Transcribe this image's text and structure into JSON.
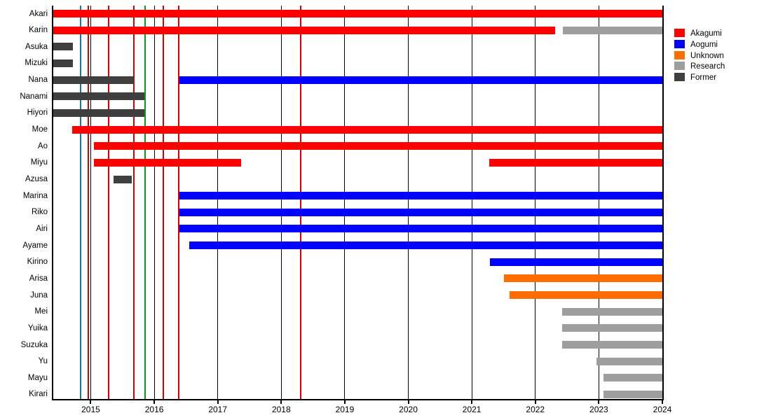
{
  "chart_data": {
    "type": "gantt",
    "title": "",
    "x_axis": {
      "min": 2014.41,
      "max": 2024.0,
      "tick_years": [
        2015,
        2016,
        2017,
        2018,
        2019,
        2020,
        2021,
        2022,
        2023,
        2024
      ]
    },
    "colors": {
      "akagumi": "#FF0000",
      "aogumi": "#0000FF",
      "unknown": "#FF6D00",
      "research": "#9E9E9E",
      "former": "#3F3F3F",
      "event_red": "#D40000",
      "event_teal": "#1279A3",
      "event_green": "#00A010",
      "axis": "#000000"
    },
    "rows": [
      {
        "label": "Akari",
        "segments": [
          {
            "start": 2014.41,
            "end": 2024.0,
            "color": "akagumi"
          }
        ]
      },
      {
        "label": "Karin",
        "segments": [
          {
            "start": 2014.41,
            "end": 2022.31,
            "color": "akagumi"
          },
          {
            "start": 2022.43,
            "end": 2024.0,
            "color": "research"
          }
        ]
      },
      {
        "label": "Asuka",
        "segments": [
          {
            "start": 2014.41,
            "end": 2014.72,
            "color": "former"
          }
        ]
      },
      {
        "label": "Mizuki",
        "segments": [
          {
            "start": 2014.41,
            "end": 2014.72,
            "color": "former"
          }
        ]
      },
      {
        "label": "Nana",
        "segments": [
          {
            "start": 2014.41,
            "end": 2015.68,
            "color": "former"
          },
          {
            "start": 2016.4,
            "end": 2024.0,
            "color": "aogumi"
          }
        ]
      },
      {
        "label": "Nanami",
        "segments": [
          {
            "start": 2014.41,
            "end": 2015.84,
            "color": "former"
          }
        ]
      },
      {
        "label": "Hiyori",
        "segments": [
          {
            "start": 2014.41,
            "end": 2015.84,
            "color": "former"
          }
        ]
      },
      {
        "label": "Moe",
        "segments": [
          {
            "start": 2014.71,
            "end": 2024.0,
            "color": "akagumi"
          }
        ]
      },
      {
        "label": "Ao",
        "segments": [
          {
            "start": 2015.05,
            "end": 2024.0,
            "color": "akagumi"
          }
        ]
      },
      {
        "label": "Miyu",
        "segments": [
          {
            "start": 2015.05,
            "end": 2017.37,
            "color": "akagumi"
          },
          {
            "start": 2021.27,
            "end": 2024.0,
            "color": "akagumi"
          }
        ]
      },
      {
        "label": "Azusa",
        "segments": [
          {
            "start": 2015.36,
            "end": 2015.65,
            "color": "former"
          }
        ]
      },
      {
        "label": "Marina",
        "segments": [
          {
            "start": 2016.4,
            "end": 2024.0,
            "color": "aogumi"
          }
        ]
      },
      {
        "label": "Riko",
        "segments": [
          {
            "start": 2016.4,
            "end": 2024.0,
            "color": "aogumi"
          }
        ]
      },
      {
        "label": "Airi",
        "segments": [
          {
            "start": 2016.4,
            "end": 2024.0,
            "color": "aogumi"
          }
        ]
      },
      {
        "label": "Ayame",
        "segments": [
          {
            "start": 2016.55,
            "end": 2024.0,
            "color": "aogumi"
          }
        ]
      },
      {
        "label": "Kirino",
        "segments": [
          {
            "start": 2021.28,
            "end": 2024.0,
            "color": "aogumi"
          }
        ]
      },
      {
        "label": "Arisa",
        "segments": [
          {
            "start": 2021.51,
            "end": 2024.0,
            "color": "unknown"
          }
        ]
      },
      {
        "label": "Juna",
        "segments": [
          {
            "start": 2021.59,
            "end": 2024.0,
            "color": "unknown"
          }
        ]
      },
      {
        "label": "Mei",
        "segments": [
          {
            "start": 2022.42,
            "end": 2024.0,
            "color": "research"
          }
        ]
      },
      {
        "label": "Yuika",
        "segments": [
          {
            "start": 2022.42,
            "end": 2024.0,
            "color": "research"
          }
        ]
      },
      {
        "label": "Suzuka",
        "segments": [
          {
            "start": 2022.42,
            "end": 2024.0,
            "color": "research"
          }
        ]
      },
      {
        "label": "Yu",
        "segments": [
          {
            "start": 2022.96,
            "end": 2024.0,
            "color": "research"
          }
        ]
      },
      {
        "label": "Mayu",
        "segments": [
          {
            "start": 2023.07,
            "end": 2024.0,
            "color": "research"
          }
        ]
      },
      {
        "label": "Kirari",
        "segments": [
          {
            "start": 2023.07,
            "end": 2024.0,
            "color": "research"
          }
        ]
      }
    ],
    "event_lines": [
      {
        "x": 2014.84,
        "color": "event_teal"
      },
      {
        "x": 2014.96,
        "color": "event_red"
      },
      {
        "x": 2015.28,
        "color": "event_red"
      },
      {
        "x": 2015.68,
        "color": "event_red"
      },
      {
        "x": 2015.86,
        "color": "event_green"
      },
      {
        "x": 2016.14,
        "color": "event_red"
      },
      {
        "x": 2016.39,
        "color": "event_red"
      },
      {
        "x": 2018.31,
        "color": "event_red"
      }
    ],
    "legend": [
      {
        "label": "Akagumi",
        "color": "akagumi"
      },
      {
        "label": "Aogumi",
        "color": "aogumi"
      },
      {
        "label": "Unknown",
        "color": "unknown"
      },
      {
        "label": "Research",
        "color": "research"
      },
      {
        "label": "Former",
        "color": "former"
      }
    ]
  }
}
